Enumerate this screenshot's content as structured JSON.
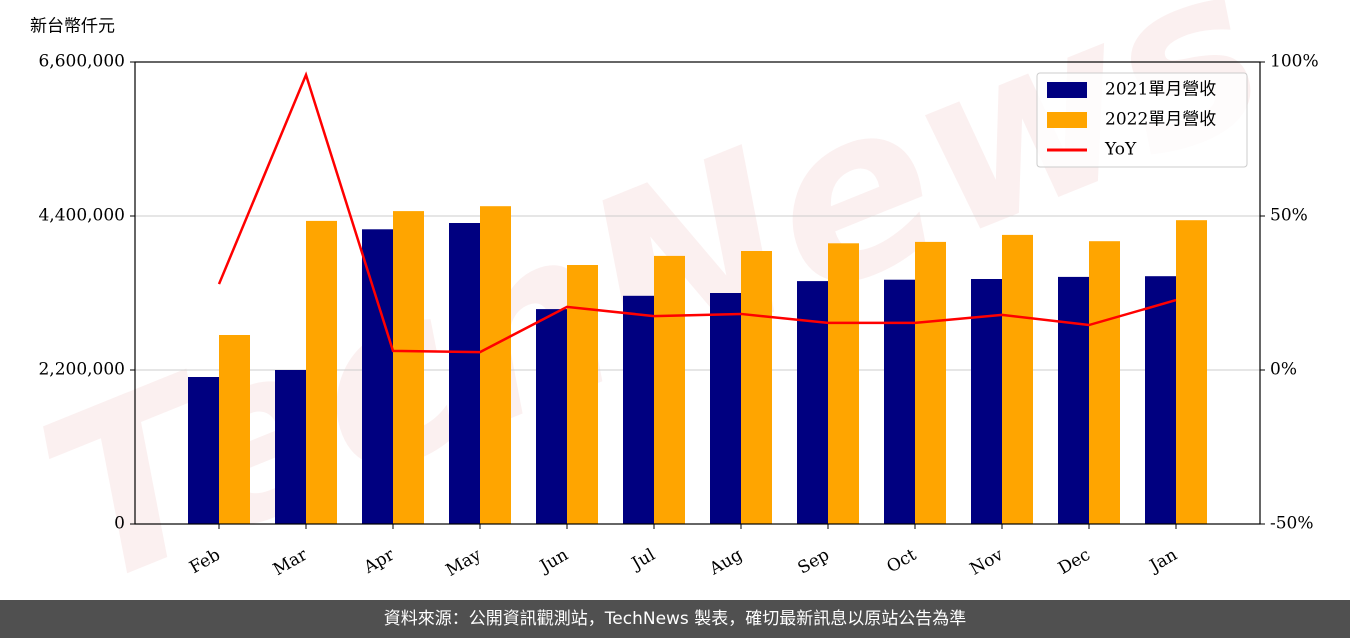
{
  "chart_data": {
    "type": "bar_line",
    "y_label": "新台幣仟元",
    "watermark": "TechNews",
    "categories": [
      "Feb",
      "Mar",
      "Apr",
      "May",
      "Jun",
      "Jul",
      "Aug",
      "Sep",
      "Oct",
      "Nov",
      "Dec",
      "Jan"
    ],
    "series": [
      {
        "name": "2021單月營收",
        "type": "bar",
        "color": "#000080",
        "values": [
          2100000,
          2200000,
          4210000,
          4300000,
          3070000,
          3260000,
          3300000,
          3470000,
          3490000,
          3500000,
          3530000,
          3540000
        ]
      },
      {
        "name": "2022單月營收",
        "type": "bar",
        "color": "#ffa500",
        "values": [
          2700000,
          4330000,
          4470000,
          4540000,
          3700000,
          3830000,
          3900000,
          4010000,
          4030000,
          4130000,
          4040000,
          4340000
        ]
      },
      {
        "name": "YoY",
        "type": "line",
        "axis": "y2",
        "color": "#ff0000",
        "values": [
          27.9,
          95.8,
          6.2,
          5.8,
          20.5,
          17.5,
          18.2,
          15.3,
          15.3,
          17.9,
          14.6,
          22.7
        ]
      }
    ],
    "ylim": [
      0,
      6600000
    ],
    "yticks": [
      0,
      {
        "value": 2200000,
        "label": "2,200,000"
      },
      {
        "value": 4400000,
        "label": "4,400,000"
      },
      {
        "value": 6600000,
        "label": "6,600,000"
      }
    ],
    "y2lim": [
      -50,
      100
    ],
    "y2ticks": [
      {
        "value": -50,
        "label": "-50%"
      },
      {
        "value": 0,
        "label": "0%"
      },
      {
        "value": 50,
        "label": "50%"
      },
      {
        "value": 100,
        "label": "100%"
      }
    ],
    "grid": true,
    "legend": "upper right",
    "footer": "資料來源：公開資訊觀測站，TechNews 製表，確切最新訊息以原站公告為準"
  }
}
